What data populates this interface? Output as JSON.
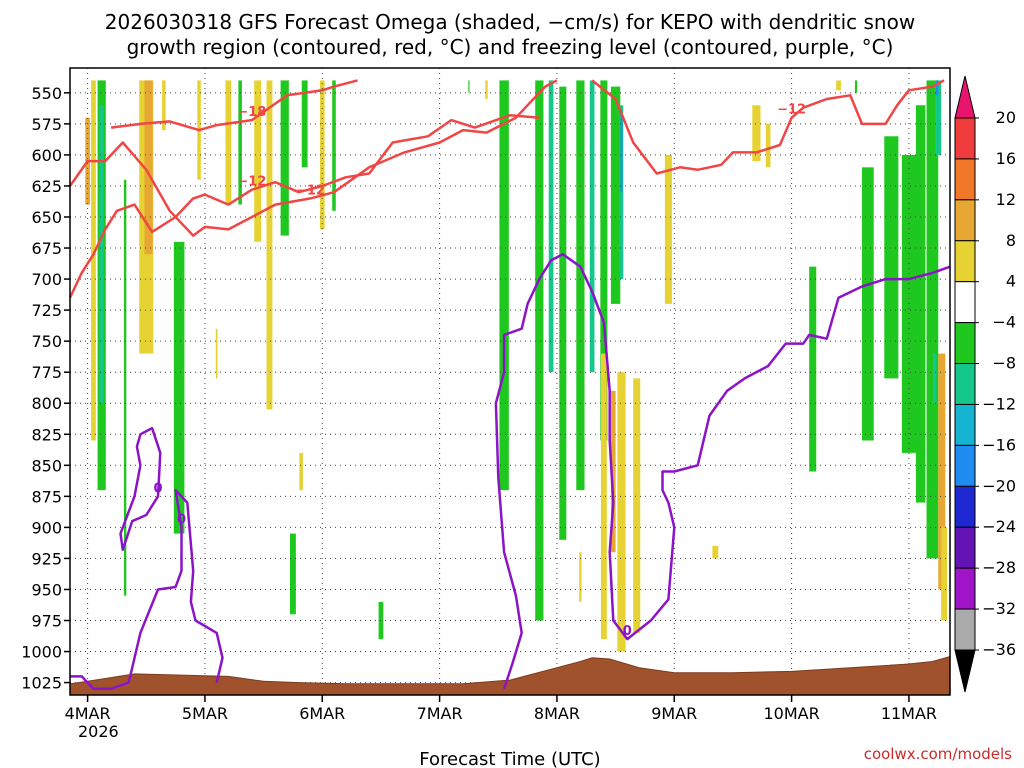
{
  "chart_data": {
    "type": "heatmap",
    "title_line1": "2026030318 GFS Forecast Omega (shaded, −cm/s) for KEPO with dendritic snow",
    "title_line2": "growth region (contoured, red, °C) and freezing level (contoured, purple, °C)",
    "xlabel": "Forecast Time (UTC)",
    "credit": "coolwx.com/models",
    "x_ticks": [
      "4MAR",
      "5MAR",
      "6MAR",
      "7MAR",
      "8MAR",
      "9MAR",
      "10MAR",
      "11MAR"
    ],
    "x_year": "2026",
    "x_range_days": [
      -0.15,
      7.35
    ],
    "y_ticks": [
      550,
      575,
      600,
      625,
      650,
      675,
      700,
      725,
      750,
      775,
      800,
      825,
      850,
      875,
      900,
      925,
      950,
      975,
      1000,
      1025
    ],
    "y_range_hpa": [
      530,
      1035
    ],
    "colorbar": {
      "labels": [
        "20",
        "16",
        "12",
        "8",
        "4",
        "−4",
        "−8",
        "−12",
        "−16",
        "−20",
        "−24",
        "−28",
        "−32",
        "−36"
      ],
      "colors": [
        "#e8146e",
        "#f03c3c",
        "#f07828",
        "#e6a832",
        "#e6d232",
        "#ffffff",
        "#1ec81e",
        "#14c88c",
        "#14b4d2",
        "#1e8cf0",
        "#1e28d2",
        "#6414b4",
        "#a014c8",
        "#aaaaaa",
        "#000000"
      ]
    },
    "shading": [
      {
        "t": 0.05,
        "p1": 540,
        "p2": 830,
        "w": 0.04,
        "c": "yellow"
      },
      {
        "t": 0.12,
        "p1": 540,
        "p2": 870,
        "w": 0.07,
        "c": "green"
      },
      {
        "t": 0.12,
        "p1": 560,
        "p2": 800,
        "w": 0.03,
        "c": "teal"
      },
      {
        "t": 0.0,
        "p1": 570,
        "p2": 640,
        "w": 0.04,
        "c": "orange"
      },
      {
        "t": 0.32,
        "p1": 620,
        "p2": 955,
        "w": 0.02,
        "c": "green"
      },
      {
        "t": 0.5,
        "p1": 540,
        "p2": 760,
        "w": 0.12,
        "c": "yellow"
      },
      {
        "t": 0.52,
        "p1": 540,
        "p2": 680,
        "w": 0.07,
        "c": "orange"
      },
      {
        "t": 0.78,
        "p1": 670,
        "p2": 905,
        "w": 0.09,
        "c": "green"
      },
      {
        "t": 0.65,
        "p1": 540,
        "p2": 580,
        "w": 0.03,
        "c": "yellow"
      },
      {
        "t": 0.95,
        "p1": 540,
        "p2": 620,
        "w": 0.03,
        "c": "yellow"
      },
      {
        "t": 1.1,
        "p1": 740,
        "p2": 780,
        "w": 0.015,
        "c": "yellow"
      },
      {
        "t": 1.2,
        "p1": 540,
        "p2": 640,
        "w": 0.05,
        "c": "yellow"
      },
      {
        "t": 1.3,
        "p1": 540,
        "p2": 640,
        "w": 0.03,
        "c": "green"
      },
      {
        "t": 1.45,
        "p1": 540,
        "p2": 670,
        "w": 0.06,
        "c": "yellow"
      },
      {
        "t": 1.55,
        "p1": 540,
        "p2": 805,
        "w": 0.05,
        "c": "yellow"
      },
      {
        "t": 1.68,
        "p1": 540,
        "p2": 665,
        "w": 0.07,
        "c": "green"
      },
      {
        "t": 1.82,
        "p1": 840,
        "p2": 870,
        "w": 0.03,
        "c": "yellow"
      },
      {
        "t": 1.85,
        "p1": 540,
        "p2": 610,
        "w": 0.05,
        "c": "green"
      },
      {
        "t": 2.0,
        "p1": 540,
        "p2": 660,
        "w": 0.04,
        "c": "yellow"
      },
      {
        "t": 2.1,
        "p1": 540,
        "p2": 645,
        "w": 0.03,
        "c": "green"
      },
      {
        "t": 1.75,
        "p1": 905,
        "p2": 970,
        "w": 0.05,
        "c": "green"
      },
      {
        "t": 2.5,
        "p1": 960,
        "p2": 990,
        "w": 0.04,
        "c": "green"
      },
      {
        "t": 3.25,
        "p1": 540,
        "p2": 550,
        "w": 0.01,
        "c": "green"
      },
      {
        "t": 3.4,
        "p1": 540,
        "p2": 555,
        "w": 0.02,
        "c": "yellow"
      },
      {
        "t": 3.55,
        "p1": 540,
        "p2": 870,
        "w": 0.08,
        "c": "green"
      },
      {
        "t": 3.85,
        "p1": 540,
        "p2": 975,
        "w": 0.07,
        "c": "green"
      },
      {
        "t": 3.95,
        "p1": 540,
        "p2": 775,
        "w": 0.04,
        "c": "teal"
      },
      {
        "t": 4.05,
        "p1": 545,
        "p2": 910,
        "w": 0.06,
        "c": "green"
      },
      {
        "t": 4.2,
        "p1": 540,
        "p2": 870,
        "w": 0.07,
        "c": "green"
      },
      {
        "t": 4.3,
        "p1": 540,
        "p2": 775,
        "w": 0.04,
        "c": "teal"
      },
      {
        "t": 4.4,
        "p1": 540,
        "p2": 830,
        "w": 0.06,
        "c": "green"
      },
      {
        "t": 4.5,
        "p1": 545,
        "p2": 720,
        "w": 0.08,
        "c": "green"
      },
      {
        "t": 4.55,
        "p1": 560,
        "p2": 700,
        "w": 0.03,
        "c": "teal"
      },
      {
        "t": 4.55,
        "p1": 565,
        "p2": 630,
        "w": 0.015,
        "c": "blue"
      },
      {
        "t": 4.4,
        "p1": 760,
        "p2": 990,
        "w": 0.05,
        "c": "yellow"
      },
      {
        "t": 4.55,
        "p1": 775,
        "p2": 1000,
        "w": 0.07,
        "c": "yellow"
      },
      {
        "t": 4.48,
        "p1": 790,
        "p2": 920,
        "w": 0.04,
        "c": "orange"
      },
      {
        "t": 4.68,
        "p1": 780,
        "p2": 985,
        "w": 0.06,
        "c": "yellow"
      },
      {
        "t": 4.2,
        "p1": 920,
        "p2": 960,
        "w": 0.02,
        "c": "yellow"
      },
      {
        "t": 4.95,
        "p1": 600,
        "p2": 720,
        "w": 0.06,
        "c": "yellow"
      },
      {
        "t": 5.35,
        "p1": 915,
        "p2": 925,
        "w": 0.05,
        "c": "yellow"
      },
      {
        "t": 5.7,
        "p1": 560,
        "p2": 605,
        "w": 0.07,
        "c": "yellow"
      },
      {
        "t": 5.8,
        "p1": 575,
        "p2": 610,
        "w": 0.04,
        "c": "yellow"
      },
      {
        "t": 6.18,
        "p1": 690,
        "p2": 855,
        "w": 0.06,
        "c": "green"
      },
      {
        "t": 6.4,
        "p1": 540,
        "p2": 548,
        "w": 0.04,
        "c": "yellow"
      },
      {
        "t": 6.55,
        "p1": 540,
        "p2": 550,
        "w": 0.02,
        "c": "green"
      },
      {
        "t": 6.65,
        "p1": 610,
        "p2": 830,
        "w": 0.1,
        "c": "green"
      },
      {
        "t": 6.85,
        "p1": 585,
        "p2": 780,
        "w": 0.12,
        "c": "green"
      },
      {
        "t": 7.0,
        "p1": 600,
        "p2": 840,
        "w": 0.12,
        "c": "green"
      },
      {
        "t": 7.1,
        "p1": 560,
        "p2": 880,
        "w": 0.08,
        "c": "green"
      },
      {
        "t": 7.2,
        "p1": 540,
        "p2": 925,
        "w": 0.1,
        "c": "green"
      },
      {
        "t": 7.25,
        "p1": 540,
        "p2": 600,
        "w": 0.05,
        "c": "teal"
      },
      {
        "t": 7.22,
        "p1": 760,
        "p2": 800,
        "w": 0.03,
        "c": "teal"
      },
      {
        "t": 7.28,
        "p1": 760,
        "p2": 950,
        "w": 0.06,
        "c": "orange"
      },
      {
        "t": 7.3,
        "p1": 900,
        "p2": 975,
        "w": 0.05,
        "c": "yellow"
      },
      {
        "t": 7.24,
        "p1": 540,
        "p2": 552,
        "w": 0.02,
        "c": "blue"
      }
    ],
    "dgz_contours": [
      {
        "label": "−18",
        "points": [
          [
            0.2,
            578
          ],
          [
            0.45,
            575
          ],
          [
            0.7,
            573
          ],
          [
            0.95,
            580
          ],
          [
            1.1,
            576
          ],
          [
            1.4,
            572
          ],
          [
            1.7,
            552
          ],
          [
            2.0,
            548
          ],
          [
            2.1,
            545
          ],
          [
            2.3,
            540
          ]
        ]
      },
      {
        "label": "−12",
        "points": [
          [
            -0.15,
            625
          ],
          [
            0.0,
            605
          ],
          [
            0.15,
            605
          ],
          [
            0.3,
            590
          ],
          [
            0.5,
            612
          ],
          [
            0.7,
            645
          ],
          [
            0.9,
            665
          ],
          [
            1.0,
            658
          ],
          [
            1.2,
            660
          ],
          [
            1.4,
            650
          ],
          [
            1.6,
            640
          ],
          [
            1.9,
            635
          ],
          [
            2.1,
            630
          ],
          [
            2.4,
            610
          ],
          [
            2.7,
            598
          ],
          [
            3.0,
            590
          ],
          [
            3.2,
            580
          ],
          [
            3.4,
            582
          ],
          [
            3.65,
            570
          ],
          [
            3.75,
            560
          ],
          [
            3.9,
            545
          ],
          [
            4.0,
            540
          ]
        ]
      },
      {
        "label": "−12",
        "points": [
          [
            -0.15,
            715
          ],
          [
            -0.05,
            695
          ],
          [
            0.05,
            680
          ],
          [
            0.15,
            660
          ],
          [
            0.25,
            645
          ],
          [
            0.4,
            640
          ],
          [
            0.55,
            662
          ],
          [
            0.75,
            650
          ],
          [
            0.9,
            635
          ],
          [
            1.0,
            632
          ],
          [
            1.2,
            640
          ],
          [
            1.4,
            628
          ],
          [
            1.6,
            622
          ],
          [
            1.8,
            630
          ],
          [
            2.0,
            625
          ],
          [
            2.2,
            618
          ],
          [
            2.4,
            615
          ],
          [
            2.6,
            590
          ],
          [
            2.9,
            585
          ],
          [
            3.1,
            572
          ],
          [
            3.3,
            578
          ],
          [
            3.6,
            568
          ],
          [
            3.85,
            570
          ]
        ]
      },
      {
        "label": "−12",
        "points": [
          [
            4.3,
            540
          ],
          [
            4.5,
            555
          ],
          [
            4.65,
            590
          ],
          [
            4.85,
            615
          ],
          [
            5.05,
            610
          ],
          [
            5.2,
            612
          ],
          [
            5.4,
            608
          ],
          [
            5.5,
            598
          ],
          [
            5.7,
            598
          ],
          [
            5.9,
            592
          ],
          [
            6.0,
            570
          ],
          [
            6.1,
            562
          ],
          [
            6.3,
            555
          ],
          [
            6.5,
            552
          ],
          [
            6.6,
            575
          ],
          [
            6.8,
            575
          ],
          [
            6.9,
            560
          ],
          [
            7.0,
            548
          ],
          [
            7.2,
            545
          ],
          [
            7.3,
            540
          ]
        ]
      }
    ],
    "freezing_contours": [
      {
        "label": "0",
        "points": [
          [
            0.45,
            850
          ],
          [
            0.4,
            875
          ],
          [
            0.28,
            905
          ],
          [
            0.3,
            918
          ],
          [
            0.38,
            895
          ],
          [
            0.5,
            890
          ],
          [
            0.6,
            875
          ],
          [
            0.62,
            840
          ],
          [
            0.55,
            820
          ],
          [
            0.45,
            825
          ],
          [
            0.42,
            835
          ],
          [
            0.45,
            850
          ]
        ]
      },
      {
        "label": "0",
        "points": [
          [
            -0.15,
            1020
          ],
          [
            -0.05,
            1020
          ],
          [
            0.05,
            1030
          ],
          [
            0.2,
            1030
          ],
          [
            0.35,
            1025
          ],
          [
            0.45,
            985
          ],
          [
            0.6,
            950
          ],
          [
            0.75,
            948
          ],
          [
            0.8,
            935
          ],
          [
            0.8,
            900
          ],
          [
            0.75,
            870
          ],
          [
            0.85,
            880
          ],
          [
            0.9,
            935
          ],
          [
            0.88,
            960
          ],
          [
            0.92,
            975
          ],
          [
            1.1,
            985
          ],
          [
            1.15,
            1005
          ],
          [
            1.1,
            1025
          ]
        ]
      },
      {
        "label": "0",
        "points": [
          [
            3.55,
            1030
          ],
          [
            3.62,
            1010
          ],
          [
            3.7,
            985
          ],
          [
            3.65,
            955
          ],
          [
            3.55,
            920
          ],
          [
            3.5,
            860
          ],
          [
            3.48,
            800
          ],
          [
            3.55,
            775
          ],
          [
            3.55,
            745
          ],
          [
            3.7,
            740
          ],
          [
            3.75,
            720
          ],
          [
            3.85,
            700
          ],
          [
            3.95,
            685
          ],
          [
            4.05,
            680
          ],
          [
            4.2,
            690
          ],
          [
            4.3,
            710
          ],
          [
            4.4,
            735
          ],
          [
            4.45,
            790
          ],
          [
            4.45,
            830
          ],
          [
            4.48,
            880
          ],
          [
            4.45,
            920
          ],
          [
            4.48,
            975
          ],
          [
            4.6,
            990
          ],
          [
            4.8,
            975
          ],
          [
            4.95,
            958
          ],
          [
            5.0,
            900
          ],
          [
            4.95,
            880
          ],
          [
            4.9,
            870
          ],
          [
            4.9,
            855
          ],
          [
            5.0,
            855
          ],
          [
            5.2,
            850
          ],
          [
            5.3,
            810
          ],
          [
            5.45,
            790
          ],
          [
            5.6,
            780
          ],
          [
            5.8,
            770
          ],
          [
            5.95,
            752
          ],
          [
            6.1,
            752
          ],
          [
            6.15,
            745
          ],
          [
            6.3,
            748
          ],
          [
            6.4,
            715
          ],
          [
            6.6,
            706
          ],
          [
            6.8,
            700
          ],
          [
            7.0,
            700
          ],
          [
            7.2,
            695
          ],
          [
            7.35,
            690
          ]
        ]
      }
    ]
  }
}
